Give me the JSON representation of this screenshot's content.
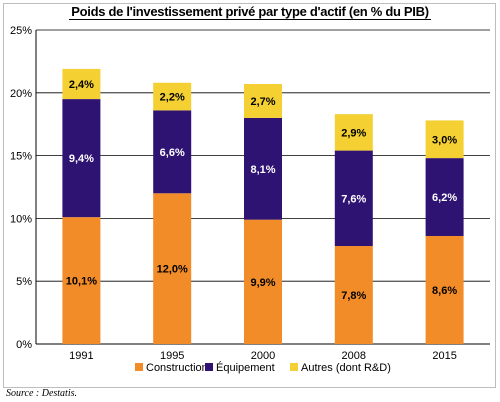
{
  "chart_data": {
    "type": "bar",
    "stacked": true,
    "title": "Poids de l'investissement privé par type d'actif (en % du PIB)",
    "categories": [
      "1991",
      "1995",
      "2000",
      "2008",
      "2015"
    ],
    "series": [
      {
        "name": "Construction",
        "values": [
          10.1,
          12.0,
          9.9,
          7.8,
          8.6
        ],
        "labels": [
          "10,1%",
          "12,0%",
          "9,9%",
          "7,8%",
          "8,6%"
        ],
        "color": "#F28C28",
        "label_color": "#000000"
      },
      {
        "name": "Équipement",
        "values": [
          9.4,
          6.6,
          8.1,
          7.6,
          6.2
        ],
        "labels": [
          "9,4%",
          "6,6%",
          "8,1%",
          "7,6%",
          "6,2%"
        ],
        "color": "#2E1373",
        "label_color": "#ffffff"
      },
      {
        "name": "Autres (dont R&D)",
        "values": [
          2.4,
          2.2,
          2.7,
          2.9,
          3.0
        ],
        "labels": [
          "2,4%",
          "2,2%",
          "2,7%",
          "2,9%",
          "3,0%"
        ],
        "color": "#F4D033",
        "label_color": "#000000"
      }
    ],
    "ylim": [
      0,
      25
    ],
    "yticks": [
      0,
      5,
      10,
      15,
      20,
      25
    ],
    "ytick_labels": [
      "0%",
      "5%",
      "10%",
      "15%",
      "20%",
      "25%"
    ],
    "grid": true,
    "legend": "bottom",
    "source": "Source : Destatis."
  }
}
